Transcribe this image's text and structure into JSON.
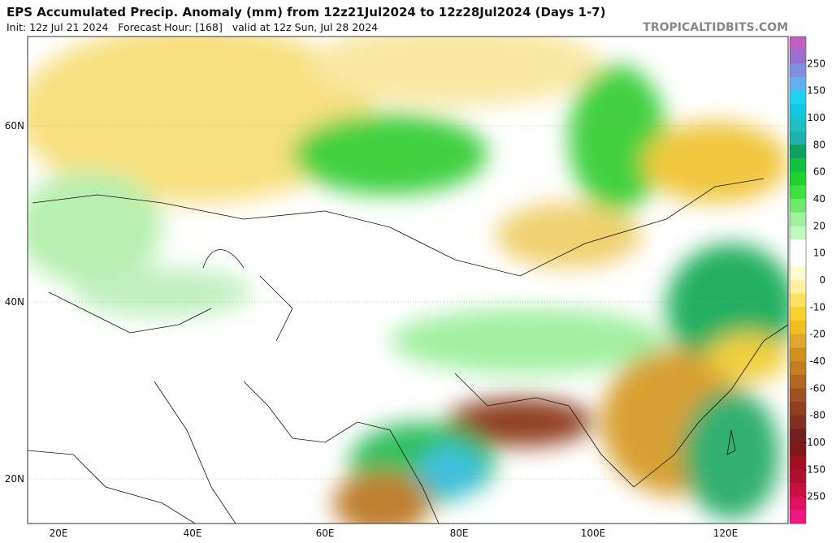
{
  "header": {
    "title": "EPS Accumulated Precip. Anomaly (mm) from 12z21Jul2024 to 12z28Jul2024 (Days 1-7)",
    "subtitle": "Init: 12z Jul 21 2024   Forecast Hour: [168]   valid at 12z Sun, Jul 28 2024",
    "site": "TROPICALTIDBITS.COM"
  },
  "map": {
    "lat_labels": [
      "60N",
      "40N",
      "20N"
    ],
    "lon_labels": [
      "20E",
      "40E",
      "60E",
      "80E",
      "100E",
      "120E"
    ]
  },
  "legend": {
    "ticks": [
      250,
      150,
      100,
      80,
      60,
      40,
      20,
      10,
      0,
      -10,
      -20,
      -40,
      -60,
      -80,
      -100,
      -150,
      -250
    ],
    "colors": [
      "#c060c0",
      "#9a6fd0",
      "#7f8fe0",
      "#5fb0f0",
      "#20d0f0",
      "#10c8e0",
      "#20c0c0",
      "#20b0b0",
      "#10a060",
      "#10c040",
      "#20d030",
      "#40e040",
      "#70e870",
      "#a0f0a0",
      "#c0f8c0",
      "#ffffff",
      "#ffffff",
      "#fffbd0",
      "#fff0a0",
      "#ffe060",
      "#f8d030",
      "#f0c020",
      "#e0a830",
      "#d09020",
      "#c08020",
      "#b06820",
      "#a05020",
      "#904020",
      "#803020",
      "#702020",
      "#801818",
      "#a01020",
      "#b01030",
      "#c81040",
      "#e01060",
      "#f01880"
    ]
  }
}
